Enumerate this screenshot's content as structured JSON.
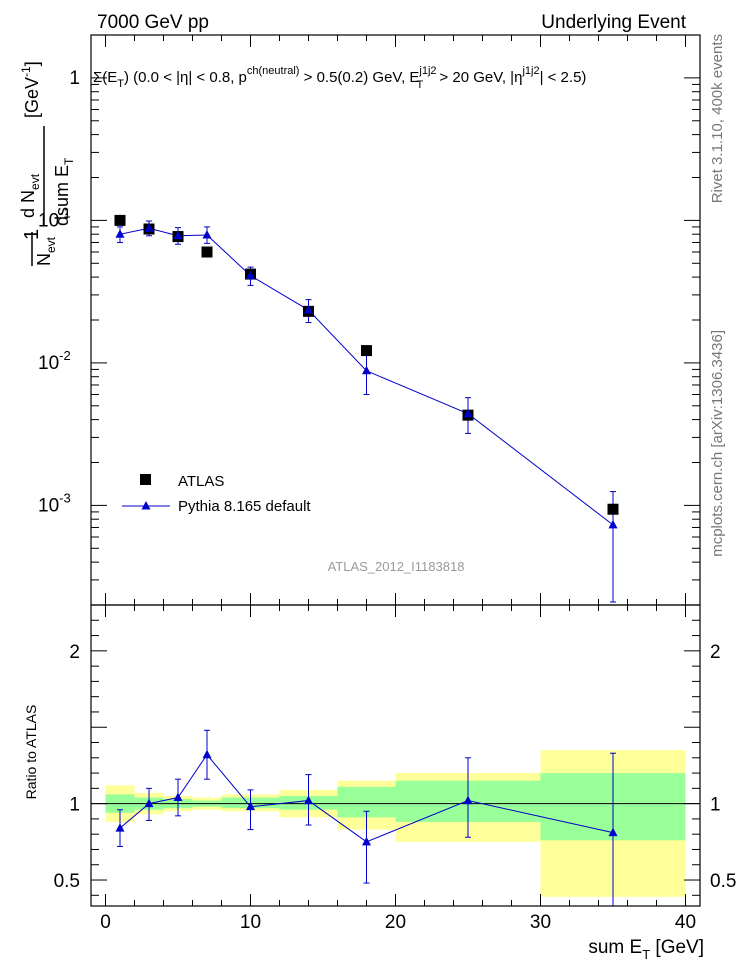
{
  "header": {
    "energy": "7000 GeV pp",
    "process": "Underlying Event",
    "selection": "Σ(E_T) (0.0 < |η| < 0.8, p^ch(neutral) > 0.5(0.2) GeV, E_T^j1j2 > 20 GeV, |η^j1j2| < 2.5)",
    "analysis_tag": "ATLAS_2012_I1183818",
    "rivet": "Rivet 3.1.10,  400k events",
    "source": "mcplots.cern.ch [arXiv:1306.3436]"
  },
  "chart_data": [
    {
      "type": "scatter",
      "panel": "main",
      "yscale": "log",
      "title": "Σ(E_T) (0.0 < |η| < 0.8, p^ch(neutral) > 0.5(0.2) GeV, E_T^j1j2 > 20 GeV, |η^j1j2| < 2.5)",
      "ylabel": "1/N_evt dN_evt/dsum E_T [GeV^-1]",
      "xlim": [
        -1,
        41
      ],
      "ylim": [
        0.0002,
        2.0
      ],
      "yticks": [
        0.001,
        0.01,
        0.1,
        1
      ],
      "ytick_labels": [
        "10^-3",
        "10^-2",
        "10^-1",
        "1"
      ],
      "legend_position": "lower-left",
      "series": [
        {
          "name": "ATLAS",
          "style": "markers",
          "color": "#000000",
          "x": [
            1,
            3,
            5,
            7,
            10,
            14,
            18,
            25,
            35
          ],
          "y": [
            0.1,
            0.087,
            0.077,
            0.06,
            0.042,
            0.023,
            0.0122,
            0.0043,
            0.00094
          ]
        },
        {
          "name": "Pythia 8.165 default",
          "style": "line-markers",
          "color": "#0000cc",
          "x": [
            1,
            3,
            5,
            7,
            10,
            14,
            18,
            25,
            35
          ],
          "y": [
            0.08,
            0.088,
            0.078,
            0.079,
            0.041,
            0.0235,
            0.0088,
            0.0044,
            0.00073
          ],
          "yerr_low": [
            0.07,
            0.078,
            0.068,
            0.069,
            0.035,
            0.0192,
            0.006,
            0.0032,
            0.00021
          ],
          "yerr_high": [
            0.09,
            0.099,
            0.089,
            0.09,
            0.047,
            0.0278,
            0.0117,
            0.0057,
            0.00125
          ]
        }
      ]
    },
    {
      "type": "scatter",
      "panel": "ratio",
      "ylabel": "Ratio to ATLAS",
      "xlabel": "sum E_T [GeV]",
      "xlim": [
        -1,
        41
      ],
      "ylim": [
        0.33,
        2.3
      ],
      "yticks": [
        0.5,
        1,
        2
      ],
      "ytick_labels": [
        "0.5",
        "1",
        "2"
      ],
      "xticks": [
        0,
        10,
        20,
        30,
        40
      ],
      "xtick_labels": [
        "0",
        "10",
        "20",
        "30",
        "40"
      ],
      "bands": {
        "bin_edges": [
          0,
          2,
          4,
          6,
          8,
          12,
          16,
          20,
          30,
          40
        ],
        "green_low": [
          0.94,
          0.96,
          0.97,
          0.98,
          0.97,
          0.96,
          0.91,
          0.88,
          0.76
        ],
        "green_high": [
          1.06,
          1.04,
          1.03,
          1.02,
          1.04,
          1.05,
          1.11,
          1.15,
          1.2
        ],
        "yellow_low": [
          0.88,
          0.93,
          0.95,
          0.96,
          0.95,
          0.91,
          0.83,
          0.75,
          0.39
        ],
        "yellow_high": [
          1.12,
          1.07,
          1.05,
          1.04,
          1.06,
          1.09,
          1.15,
          1.2,
          1.35
        ]
      },
      "series": [
        {
          "name": "Pythia 8.165 default / ATLAS",
          "color": "#0000cc",
          "x": [
            1,
            3,
            5,
            7,
            10,
            14,
            18,
            25,
            35
          ],
          "y": [
            0.84,
            1.0,
            1.04,
            1.32,
            0.98,
            1.02,
            0.75,
            1.02,
            0.81
          ],
          "yerr_low": [
            0.72,
            0.89,
            0.92,
            1.16,
            0.83,
            0.86,
            0.48,
            0.78,
            0.3
          ],
          "yerr_high": [
            0.96,
            1.1,
            1.16,
            1.48,
            1.09,
            1.19,
            0.95,
            1.3,
            1.33
          ]
        }
      ]
    }
  ]
}
